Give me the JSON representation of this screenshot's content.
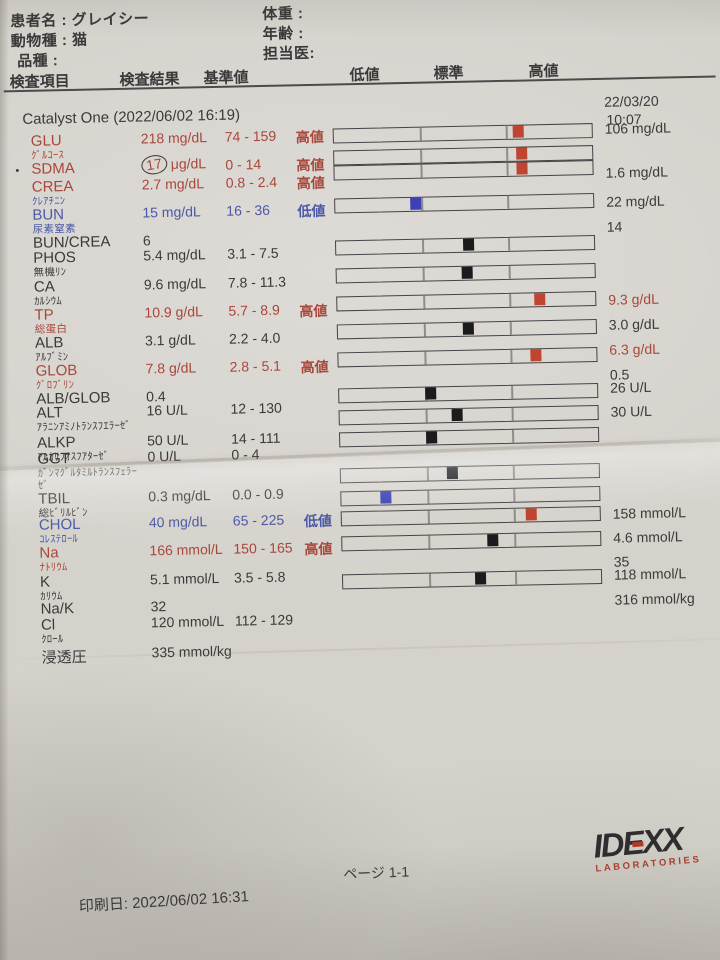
{
  "palette": {
    "red": "#a8473a",
    "blue": "#4a58a6",
    "black": "#3b393a",
    "marker_red": "#bf4530",
    "marker_blue": "#3c42b5",
    "marker_black": "#1b1b1d"
  },
  "patient": {
    "left": [
      "患者名 : グレイシー",
      "動物種 : 猫",
      "品種 :"
    ],
    "right": [
      "体重 :",
      "年齢 :",
      "担当医:"
    ]
  },
  "columns": {
    "item": "検査項目",
    "result": "検査結果",
    "reference": "基準値",
    "low": "低値",
    "normal": "標準",
    "high": "高値"
  },
  "analyzer": {
    "title": "Catalyst One (2022/06/02 16:19)",
    "prev_date": "22/03/20",
    "prev_time": "10:07"
  },
  "rows": [
    {
      "id": "glu",
      "code": "GLU",
      "sub": [
        "ｸﾞﾙｺｰｽ"
      ],
      "color": "red",
      "result": "218 mg/dL",
      "range": "74 - 159",
      "flag": "高値",
      "bar": {
        "pct": 71,
        "color": "red"
      },
      "prev": "106 mg/dL",
      "prev_color": "black"
    },
    {
      "id": "sdma",
      "bullet": "•",
      "code": "SDMA",
      "sub": [],
      "color": "red",
      "result": "17 μg/dL",
      "circled": true,
      "range": "0 - 14",
      "flag": "高値",
      "bar": {
        "pct": 72,
        "color": "red"
      }
    },
    {
      "id": "crea",
      "code": "CREA",
      "sub": [
        "ｸﾚｱﾁﾆﾝ"
      ],
      "sub_color": "blue",
      "color": "red",
      "result": "2.7 mg/dL",
      "range": "0.8 - 2.4",
      "flag": "高値",
      "bar": {
        "pct": 72,
        "color": "red"
      },
      "prev": "1.6 mg/dL",
      "prev_color": "black"
    },
    {
      "id": "bun",
      "code": "BUN",
      "sub": [
        "尿素窒素"
      ],
      "color": "blue",
      "result": "15 mg/dL",
      "range": "16 - 36",
      "flag": "低値",
      "bar": {
        "pct": 31,
        "color": "blue"
      },
      "prev": "22 mg/dL",
      "prev_color": "black"
    },
    {
      "id": "buncrea",
      "code": "BUN/CREA",
      "sub": [],
      "color": "black",
      "result": "6",
      "prev": "14",
      "prev_color": "black"
    },
    {
      "id": "phos",
      "code": "PHOS",
      "sub": [
        "無機ﾘﾝ"
      ],
      "color": "black",
      "result": "5.4 mg/dL",
      "range": "3.1 - 7.5",
      "bar": {
        "pct": 51,
        "color": "black"
      }
    },
    {
      "id": "ca",
      "code": "CA",
      "sub": [
        "ｶﾙｼｳﾑ"
      ],
      "color": "black",
      "result": "9.6 mg/dL",
      "range": "7.8 - 11.3",
      "bar": {
        "pct": 50,
        "color": "black"
      }
    },
    {
      "id": "tp",
      "code": "TP",
      "sub": [
        "総蛋白"
      ],
      "color": "red",
      "result": "10.9 g/dL",
      "range": "5.7 - 8.9",
      "flag": "高値",
      "bar": {
        "pct": 78,
        "color": "red"
      },
      "prev": "9.3 g/dL",
      "prev_color": "red"
    },
    {
      "id": "alb",
      "code": "ALB",
      "sub": [
        "ｱﾙﾌﾞﾐﾝ"
      ],
      "color": "black",
      "result": "3.1 g/dL",
      "range": "2.2 - 4.0",
      "bar": {
        "pct": 50,
        "color": "black"
      },
      "prev": "3.0 g/dL",
      "prev_color": "black"
    },
    {
      "id": "glob",
      "code": "GLOB",
      "sub": [
        "ｸﾞﾛﾌﾞﾘﾝ"
      ],
      "color": "red",
      "result": "7.8 g/dL",
      "range": "2.8 - 5.1",
      "flag": "高値",
      "bar": {
        "pct": 76,
        "color": "red"
      },
      "prev": "6.3 g/dL",
      "prev_color": "red"
    },
    {
      "id": "albglob",
      "code": "ALB/GLOB",
      "sub": [],
      "color": "black",
      "result": "0.4",
      "prev": "0.5",
      "prev_color": "black"
    },
    {
      "id": "alt",
      "code": "ALT",
      "sub": [
        "ｱﾗﾆﾝｱﾐﾉﾄﾗﾝｽﾌｴﾗｰｾﾞ"
      ],
      "color": "black",
      "result": "16 U/L",
      "range": "12 - 130",
      "bar": {
        "pct": 35,
        "color": "black"
      },
      "prev": "26 U/L",
      "prev_color": "black"
    },
    {
      "id": "alkp",
      "code": "ALKP",
      "sub": [
        "ｱﾙｶﾘﾌｵｽﾌｱﾀｰｾﾞ"
      ],
      "color": "black",
      "result": "50 U/L",
      "range": "14 - 111",
      "bar": {
        "pct": 45,
        "color": "black"
      },
      "prev": "30 U/L",
      "prev_color": "black"
    },
    {
      "id": "ggt",
      "code": "GGT",
      "sub": [
        "ｶﾞﾝﾏｸﾞﾙﾀﾐﾙﾄﾗﾝｽﾌｪﾗｰ",
        "ｾﾞ"
      ],
      "color": "black",
      "result": "0 U/L",
      "range": "0 - 4",
      "bar": {
        "pct": 35,
        "color": "black"
      }
    },
    {
      "id": "tbil",
      "code": "TBIL",
      "sub": [
        "総ﾋﾞﾘﾙﾋﾞﾝ"
      ],
      "color": "black",
      "result": "0.3 mg/dL",
      "range": "0.0 - 0.9",
      "bar": {
        "pct": 43,
        "color": "black"
      }
    },
    {
      "id": "chol",
      "code": "CHOL",
      "sub": [
        "ｺﾚｽﾃﾛｰﾙ"
      ],
      "color": "blue",
      "result": "40 mg/dL",
      "range": "65 - 225",
      "flag": "低値",
      "bar": {
        "pct": 17,
        "color": "blue"
      }
    },
    {
      "id": "na",
      "code": "Na",
      "sub": [
        "ﾅﾄﾘｳﾑ"
      ],
      "color": "red",
      "result": "166 mmol/L",
      "range": "150 - 165",
      "flag": "高値",
      "bar": {
        "pct": 73,
        "color": "red"
      },
      "prev": "158 mmol/L",
      "prev_color": "black"
    },
    {
      "id": "k",
      "code": "K",
      "sub": [
        "ｶﾘｳﾑ"
      ],
      "color": "black",
      "result": "5.1 mmol/L",
      "range": "3.5 - 5.8",
      "bar": {
        "pct": 58,
        "color": "black"
      },
      "prev": "4.6 mmol/L",
      "prev_color": "black"
    },
    {
      "id": "nak",
      "code": "Na/K",
      "sub": [],
      "color": "black",
      "result": "32",
      "prev": "35",
      "prev_color": "black"
    },
    {
      "id": "cl",
      "code": "Cl",
      "sub": [
        "ｸﾛｰﾙ"
      ],
      "color": "black",
      "result": "120 mmol/L",
      "range": "112 - 129",
      "bar": {
        "pct": 53,
        "color": "black"
      },
      "prev": "118 mmol/L",
      "prev_color": "black"
    },
    {
      "id": "osm",
      "code": "浸透圧",
      "sub": [],
      "color": "black",
      "result": "335 mmol/kg",
      "prev": "316 mmol/kg",
      "prev_color": "black"
    }
  ],
  "footer": {
    "printed": "印刷日: 2022/06/02 16:31",
    "page": "ページ 1-1"
  },
  "logo": {
    "text": "IDEXX",
    "sub": "LABORATORIES"
  }
}
